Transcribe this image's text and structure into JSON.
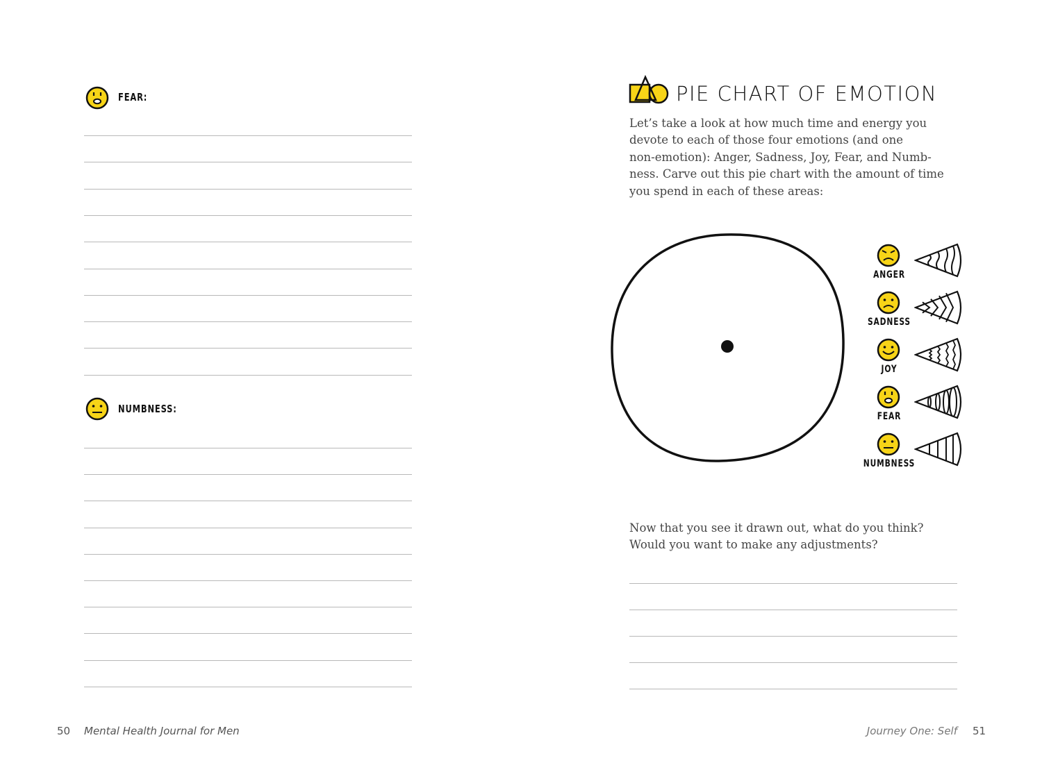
{
  "left_page": {
    "sections": [
      {
        "label": "FEAR:",
        "icon": "fear-face-icon"
      },
      {
        "label": "NUMBNESS:",
        "icon": "numbness-face-icon"
      }
    ],
    "footer": {
      "page_number": "50",
      "book_title": "Mental Health Journal for Men"
    }
  },
  "right_page": {
    "title_icon": "shapes-icon",
    "title": "PIE CHART OF EMOTION",
    "intro": [
      "Let’s take a look at how much time and energy you",
      "devote to each of those four emotions (and one",
      "non-emotion): Anger, Sadness, Joy, Fear, and Numb-",
      "ness. Carve out this pie chart with the amount of time",
      "you spend in each of these areas:"
    ],
    "legend": [
      {
        "label": "ANGER",
        "icon": "angry-face-icon",
        "pattern": "wavy-lines"
      },
      {
        "label": "SADNESS",
        "icon": "sad-face-icon",
        "pattern": "chevrons"
      },
      {
        "label": "JOY",
        "icon": "happy-face-icon",
        "pattern": "squiggle-lines"
      },
      {
        "label": "FEAR",
        "icon": "fear-face-icon",
        "pattern": "ovals"
      },
      {
        "label": "NUMBNESS",
        "icon": "numbness-face-icon",
        "pattern": "straight-lines"
      }
    ],
    "question": [
      "Now that you see it drawn out, what do you think?",
      "Would you want to make any adjustments?"
    ],
    "footer": {
      "chapter": "Journey One: Self",
      "page_number": "51"
    }
  },
  "colors": {
    "accent_yellow": "#f7d417",
    "rule_gray": "#b8b8b8"
  }
}
